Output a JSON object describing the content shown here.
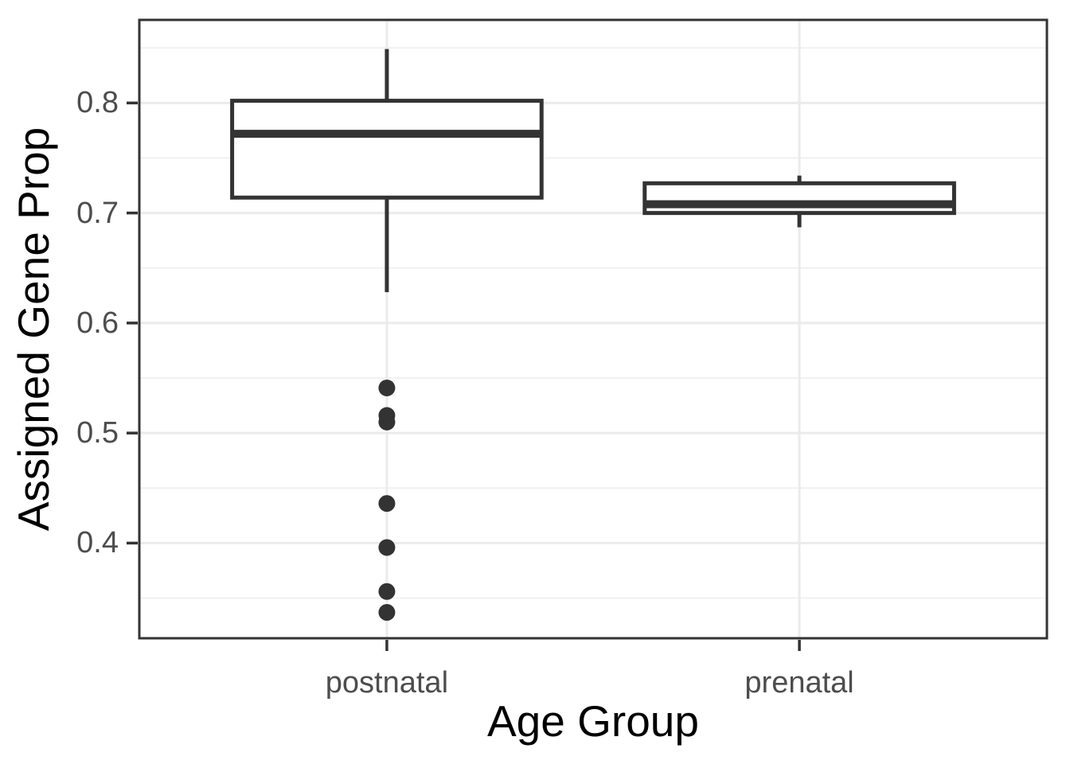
{
  "chart_data": {
    "type": "boxplot",
    "title": "",
    "xlabel": "Age Group",
    "ylabel": "Assigned Gene Prop",
    "categories": [
      "postnatal",
      "prenatal"
    ],
    "series": [
      {
        "name": "postnatal",
        "whisker_low": 0.628,
        "q1": 0.714,
        "median": 0.772,
        "q3": 0.802,
        "whisker_high": 0.849,
        "outliers": [
          0.541,
          0.516,
          0.51,
          0.436,
          0.396,
          0.356,
          0.337
        ]
      },
      {
        "name": "prenatal",
        "whisker_low": 0.687,
        "q1": 0.7,
        "median": 0.708,
        "q3": 0.727,
        "whisker_high": 0.734,
        "outliers": []
      }
    ],
    "ylim": [
      0.3135,
      0.8755
    ],
    "yticks": [
      0.4,
      0.5,
      0.6,
      0.7,
      0.8
    ],
    "ytick_labels": [
      "0.4",
      "0.5",
      "0.6",
      "0.7",
      "0.8"
    ],
    "yticks_minor": [
      0.35,
      0.45,
      0.55,
      0.65,
      0.75,
      0.85
    ],
    "grid": true,
    "legend": "none"
  },
  "colors": {
    "background": "#ffffff",
    "panel_background": "#ffffff",
    "panel_border": "#333333",
    "grid_major": "#ebebeb",
    "grid_minor": "#efefef",
    "box_stroke": "#333333",
    "box_fill": "#ffffff",
    "outlier_fill": "#333333",
    "tick_mark": "#333333",
    "tick_label": "#4d4d4d",
    "axis_title": "#000000"
  }
}
